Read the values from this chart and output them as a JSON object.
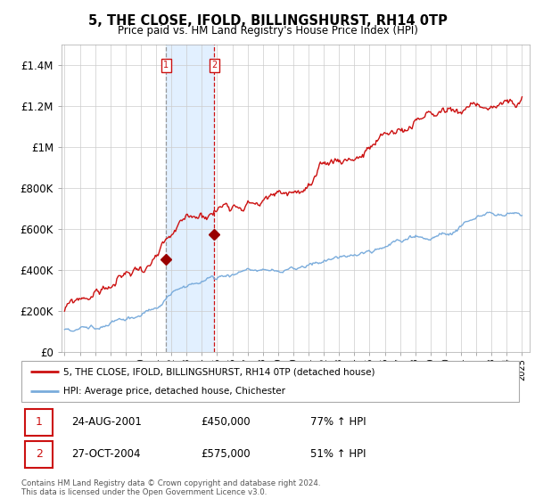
{
  "title": "5, THE CLOSE, IFOLD, BILLINGSHURST, RH14 0TP",
  "subtitle": "Price paid vs. HM Land Registry's House Price Index (HPI)",
  "legend_line1": "5, THE CLOSE, IFOLD, BILLINGSHURST, RH14 0TP (detached house)",
  "legend_line2": "HPI: Average price, detached house, Chichester",
  "transactions": [
    {
      "num": 1,
      "date": "24-AUG-2001",
      "price": 450000,
      "pct": "77%",
      "dir": "↑"
    },
    {
      "num": 2,
      "date": "27-OCT-2004",
      "price": 575000,
      "pct": "51%",
      "dir": "↑"
    }
  ],
  "t1_year": 2001.644,
  "t2_year": 2004.822,
  "t1_price": 450000,
  "t2_price": 575000,
  "hpi_line_color": "#7aacdc",
  "price_line_color": "#cc1111",
  "marker_dot_color": "#990000",
  "vline1_color": "#999999",
  "vline2_color": "#cc1111",
  "shading_color": "#ddeeff",
  "footer": "Contains HM Land Registry data © Crown copyright and database right 2024.\nThis data is licensed under the Open Government Licence v3.0.",
  "ylim": [
    0,
    1500000
  ],
  "yticks": [
    0,
    200000,
    400000,
    600000,
    800000,
    1000000,
    1200000,
    1400000
  ],
  "ytick_labels": [
    "£0",
    "£200K",
    "£400K",
    "£600K",
    "£800K",
    "£1M",
    "£1.2M",
    "£1.4M"
  ],
  "xlim_start": 1994.8,
  "xlim_end": 2025.5,
  "noise_scale_hpi": 3500,
  "noise_scale_price": 8000
}
